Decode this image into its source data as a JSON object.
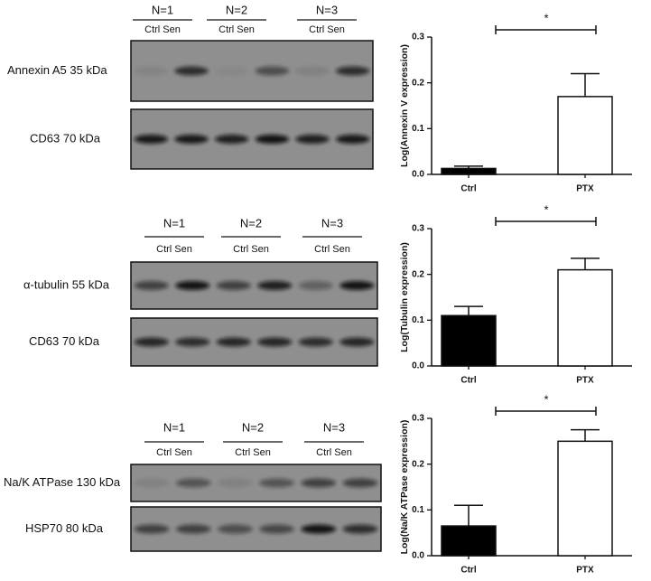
{
  "chart_data": [
    {
      "type": "bar",
      "y_label": "Log(Annexin V expression)",
      "categories": [
        "Ctrl",
        "PTX"
      ],
      "values": [
        0.013,
        0.17
      ],
      "errors": [
        0.005,
        0.05
      ],
      "colors": [
        "#000000",
        "#ffffff"
      ],
      "ylim": [
        0,
        0.3
      ],
      "yticks": [
        {
          "value": 0,
          "label": "0.0"
        },
        0.1,
        0.2,
        0.3
      ],
      "annotation": "*"
    },
    {
      "type": "bar",
      "y_label": "Log(Tubulin expression)",
      "categories": [
        "Ctrl",
        "PTX"
      ],
      "values": [
        0.11,
        0.21
      ],
      "errors": [
        0.02,
        0.025
      ],
      "colors": [
        "#000000",
        "#ffffff"
      ],
      "ylim": [
        0,
        0.3
      ],
      "yticks": [
        {
          "value": 0,
          "label": "0.0"
        },
        0.1,
        0.2,
        0.3
      ],
      "annotation": "*"
    },
    {
      "type": "bar",
      "y_label": "Log(Na/K ATPase expression)",
      "categories": [
        "Ctrl",
        "PTX"
      ],
      "values": [
        0.065,
        0.25
      ],
      "errors": [
        0.045,
        0.025
      ],
      "colors": [
        "#000000",
        "#ffffff"
      ],
      "ylim": [
        0,
        0.3
      ],
      "yticks": [
        {
          "value": 0,
          "label": "0.0"
        },
        0.1,
        0.2,
        0.3
      ],
      "annotation": "*"
    }
  ],
  "blots": [
    {
      "groups": [
        "N=1",
        "N=2",
        "N=3"
      ],
      "lanes": [
        "Ctrl Sen",
        "Ctrl Sen",
        "Ctrl Sen"
      ],
      "rows": [
        "Annexin A5 35 kDa",
        "CD63 70 kDa"
      ]
    },
    {
      "groups": [
        "N=1",
        "N=2",
        "N=3"
      ],
      "lanes": [
        "Ctrl Sen",
        "Ctrl Sen",
        "Ctrl Sen"
      ],
      "rows": [
        "α-tubulin 55 kDa",
        "CD63 70 kDa"
      ]
    },
    {
      "groups": [
        "N=1",
        "N=2",
        "N=3"
      ],
      "lanes": [
        "Ctrl Sen",
        "Ctrl Sen",
        "Ctrl Sen"
      ],
      "rows": [
        "Na/K ATPase 130 kDa",
        "HSP70 80 kDa"
      ]
    }
  ]
}
